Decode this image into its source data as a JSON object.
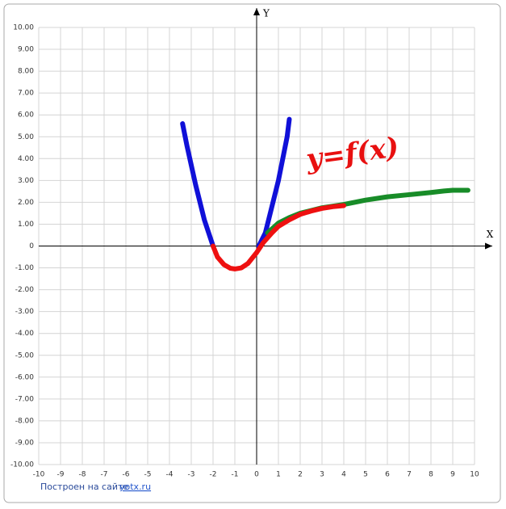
{
  "chart_data": {
    "type": "line",
    "xlim": [
      -10,
      10
    ],
    "ylim": [
      -10,
      10
    ],
    "xticks": [
      -10,
      -9,
      -8,
      -7,
      -6,
      -5,
      -4,
      -3,
      -2,
      -1,
      0,
      1,
      2,
      3,
      4,
      5,
      6,
      7,
      8,
      9,
      10
    ],
    "yticks": [
      {
        "value": 10,
        "label": "10.00"
      },
      {
        "value": 9,
        "label": "9.00"
      },
      {
        "value": 8,
        "label": "8.00"
      },
      {
        "value": 7,
        "label": "7.00"
      },
      {
        "value": 6,
        "label": "6.00"
      },
      {
        "value": 5,
        "label": "5.00"
      },
      {
        "value": 4,
        "label": "4.00"
      },
      {
        "value": 3,
        "label": "3.00"
      },
      {
        "value": 2,
        "label": "2.00"
      },
      {
        "value": 1,
        "label": "1.00"
      },
      0,
      {
        "value": -1,
        "label": "-1.00"
      },
      {
        "value": -2,
        "label": "-2.00"
      },
      {
        "value": -3,
        "label": "-3.00"
      },
      {
        "value": -4,
        "label": "-4.00"
      },
      {
        "value": -5,
        "label": "-5.00"
      },
      {
        "value": -6,
        "label": "-6.00"
      },
      {
        "value": -7,
        "label": "-7.00"
      },
      {
        "value": -8,
        "label": "-8.00"
      },
      {
        "value": -9,
        "label": "-9.00"
      },
      {
        "value": -10,
        "label": "-10.00"
      }
    ],
    "grid": true,
    "x_label": "X",
    "y_label": "Y",
    "annotation": "y=f(x)",
    "credit_text": "Построен на сайте",
    "credit_link": "yotx.ru",
    "series": [
      {
        "color": "#1010d8",
        "x": [
          -3.4,
          -3.2,
          -3,
          -2.8,
          -2.6,
          -2.4,
          -2.2,
          -2,
          null,
          0.1,
          0.4,
          0.7,
          1,
          1.2,
          1.4,
          1.5
        ],
        "values": [
          5.6,
          4.6,
          3.7,
          2.8,
          2,
          1.2,
          0.6,
          0,
          null,
          0,
          0.6,
          1.8,
          3,
          4,
          5,
          5.8
        ]
      },
      {
        "color": "#188c28",
        "x": [
          0.5,
          1,
          1.5,
          2,
          3,
          4,
          5,
          6,
          7,
          8,
          8.6,
          9,
          9.7
        ],
        "values": [
          0.6,
          1.05,
          1.3,
          1.5,
          1.75,
          1.9,
          2.1,
          2.25,
          2.35,
          2.45,
          2.52,
          2.55,
          2.55
        ]
      },
      {
        "color": "#ee1010",
        "x": [
          -2,
          -1.8,
          -1.5,
          -1.2,
          -1,
          -0.7,
          -0.4,
          -0.2,
          0,
          0.3,
          0.7,
          1,
          1.5,
          2,
          2.5,
          3,
          3.5,
          4
        ],
        "values": [
          0,
          -0.5,
          -0.85,
          -1.02,
          -1.05,
          -1,
          -0.8,
          -0.55,
          -0.3,
          0.15,
          0.6,
          0.9,
          1.2,
          1.45,
          1.6,
          1.72,
          1.8,
          1.85
        ]
      }
    ]
  }
}
